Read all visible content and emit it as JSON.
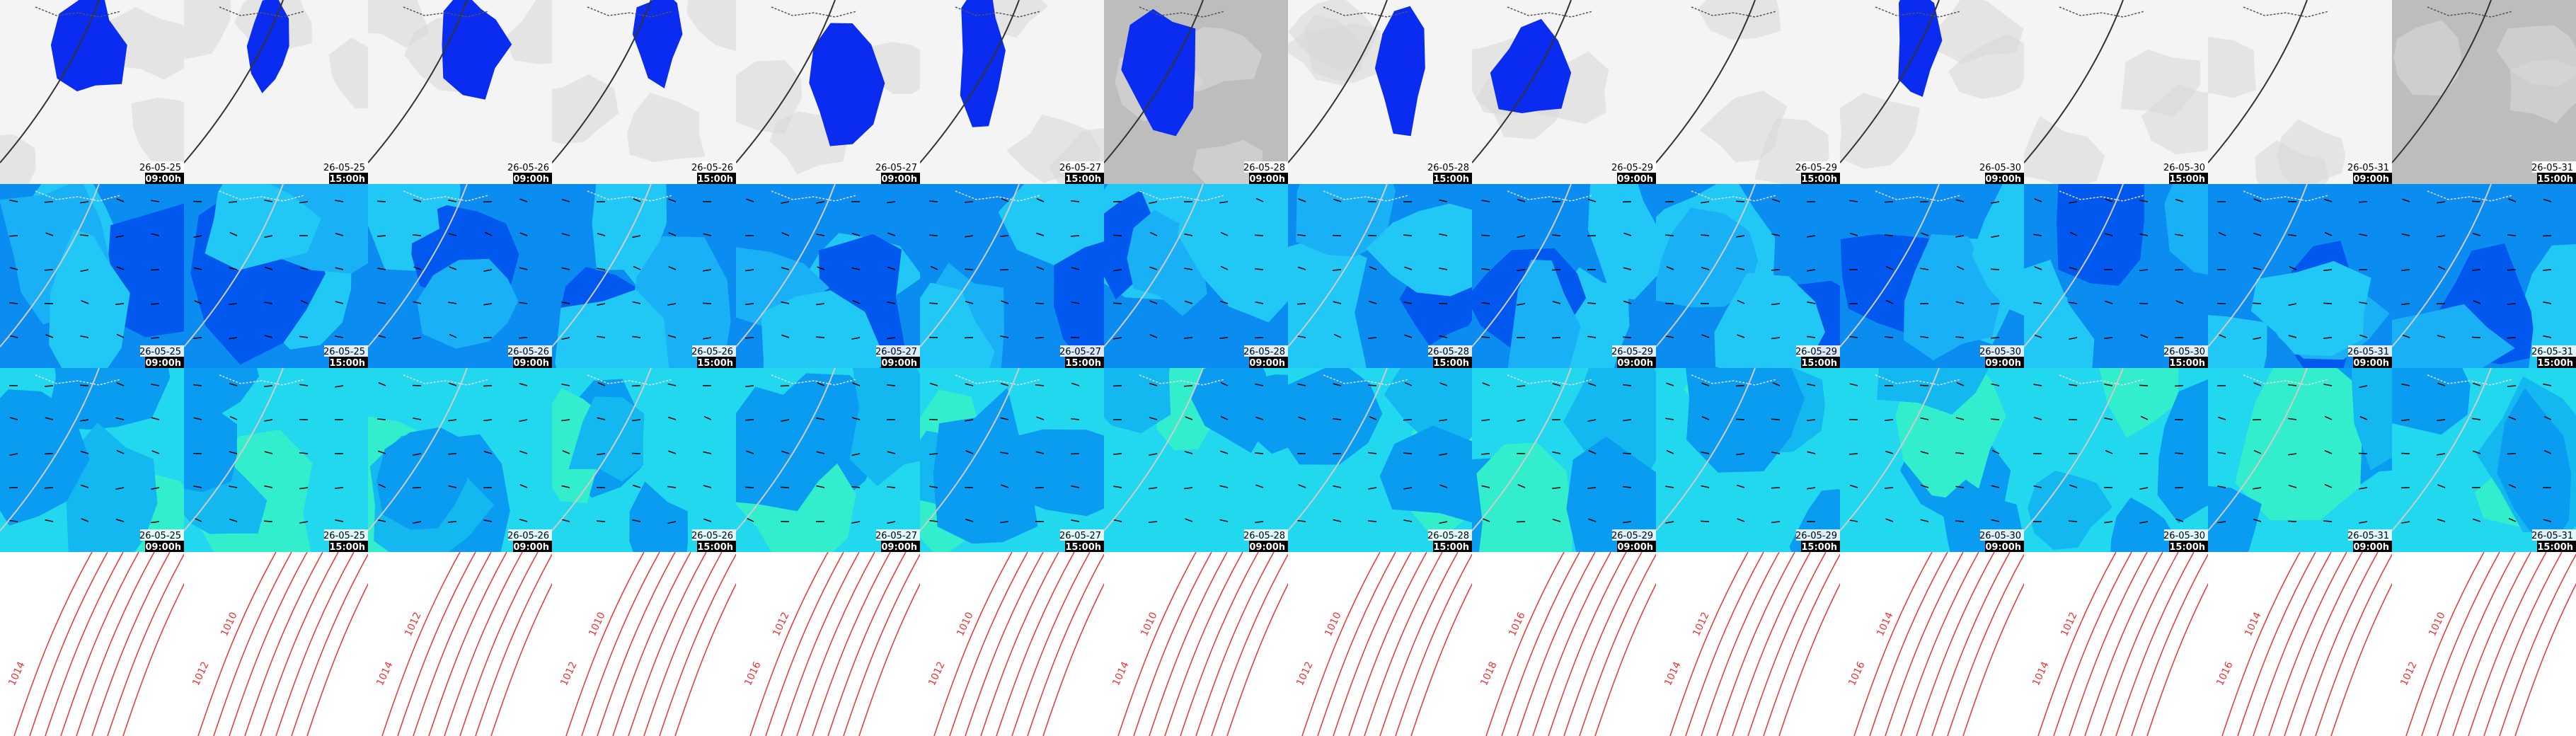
{
  "columns": [
    {
      "date": "26-05-25",
      "time": "09:00h",
      "isobars": [
        "1014"
      ]
    },
    {
      "date": "26-05-25",
      "time": "15:00h",
      "isobars": [
        "1012",
        "1010"
      ]
    },
    {
      "date": "26-05-26",
      "time": "09:00h",
      "isobars": [
        "1014",
        "1012"
      ]
    },
    {
      "date": "26-05-26",
      "time": "15:00h",
      "isobars": [
        "1012",
        "1010"
      ]
    },
    {
      "date": "26-05-27",
      "time": "09:00h",
      "isobars": [
        "1016",
        "1012"
      ]
    },
    {
      "date": "26-05-27",
      "time": "15:00h",
      "isobars": [
        "1012",
        "1010"
      ]
    },
    {
      "date": "26-05-28",
      "time": "09:00h",
      "isobars": [
        "1014",
        "1010"
      ]
    },
    {
      "date": "26-05-28",
      "time": "15:00h",
      "isobars": [
        "1012",
        "1010"
      ]
    },
    {
      "date": "26-05-29",
      "time": "09:00h",
      "isobars": [
        "1018",
        "1016"
      ]
    },
    {
      "date": "26-05-29",
      "time": "15:00h",
      "isobars": [
        "1014",
        "1012"
      ]
    },
    {
      "date": "26-05-30",
      "time": "09:00h",
      "isobars": [
        "1016",
        "1014"
      ]
    },
    {
      "date": "26-05-30",
      "time": "15:00h",
      "isobars": [
        "1014",
        "1012"
      ]
    },
    {
      "date": "26-05-31",
      "time": "09:00h",
      "isobars": [
        "1016",
        "1014"
      ]
    },
    {
      "date": "26-05-31",
      "time": "15:00h",
      "isobars": [
        "1012",
        "1010"
      ]
    }
  ]
}
